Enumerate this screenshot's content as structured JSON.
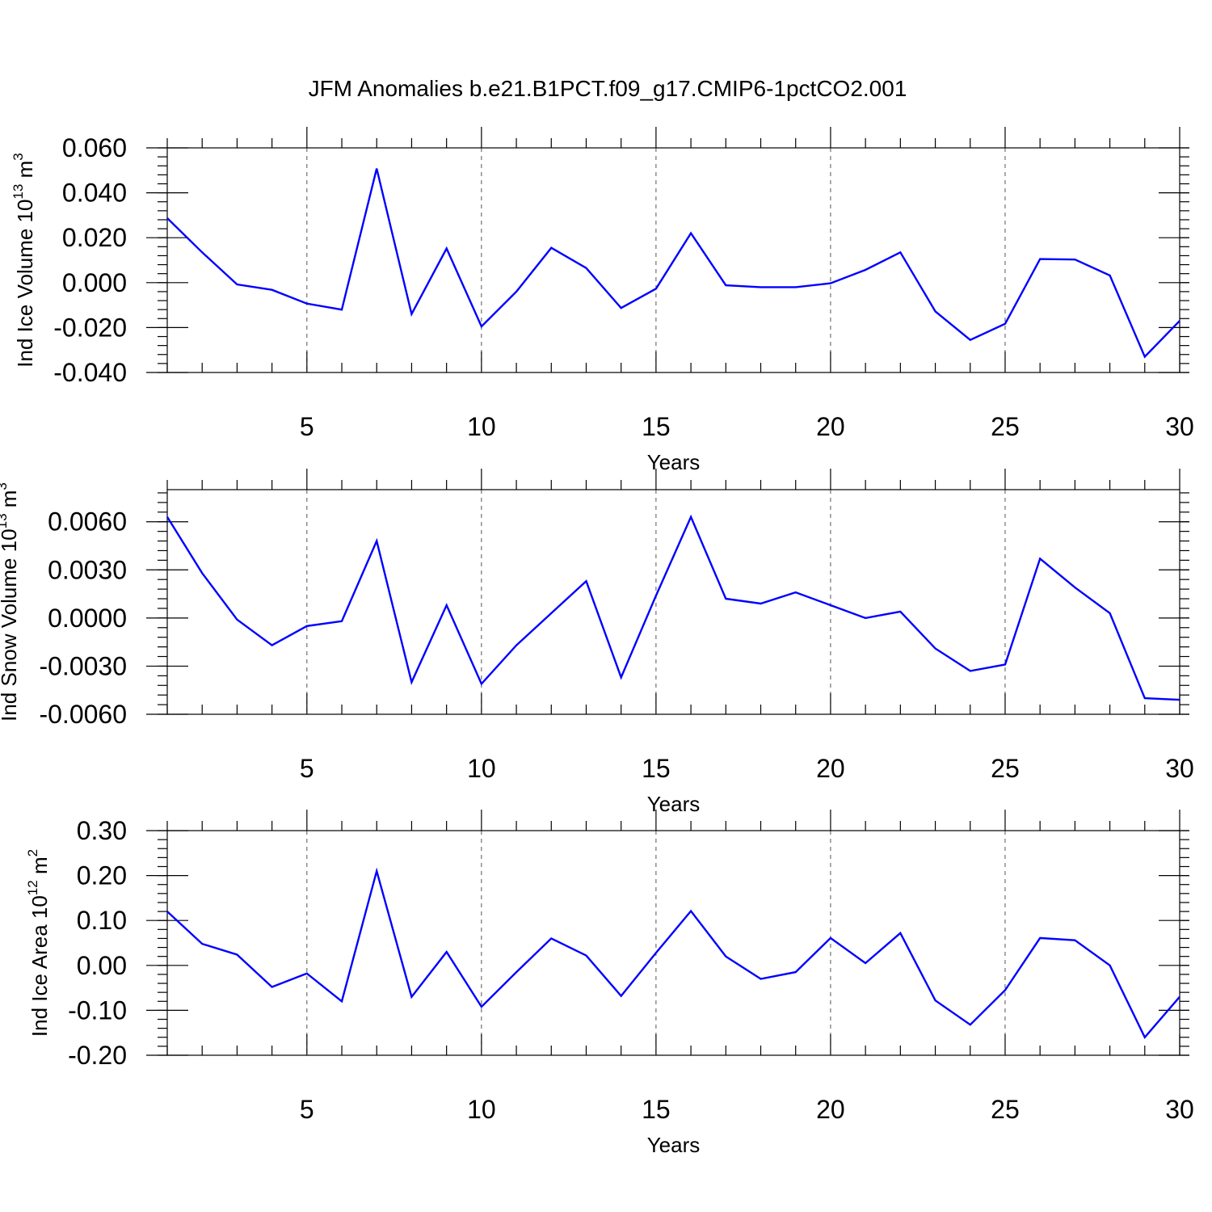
{
  "figure": {
    "title": "JFM Anomalies b.e21.B1PCT.f09_g17.CMIP6-1pctCO2.001"
  },
  "chart_data": [
    {
      "type": "line",
      "xlabel": "Years",
      "ylabel": "Ind Ice Volume 10",
      "ylabel_exponent": "13",
      "ylabel_unit": " m",
      "ylabel_unit_exponent": "3",
      "xlim": [
        1,
        30
      ],
      "ylim": [
        -0.04,
        0.06
      ],
      "x_ticks": [
        5,
        10,
        15,
        20,
        25,
        30
      ],
      "x_tick_labels": [
        "5",
        "10",
        "15",
        "20",
        "25",
        "30"
      ],
      "y_ticks": [
        -0.04,
        -0.02,
        0.0,
        0.02,
        0.04,
        0.06
      ],
      "y_tick_labels": [
        "-0.040",
        "-0.020",
        "0.000",
        "0.020",
        "0.040",
        "0.060"
      ],
      "y_minor_step": 0.004,
      "grid": "vertical dashed at major x ticks",
      "line_color": "#0000ff",
      "x": [
        1,
        2,
        3,
        4,
        5,
        6,
        7,
        8,
        9,
        10,
        11,
        12,
        13,
        14,
        15,
        16,
        17,
        18,
        19,
        20,
        21,
        22,
        23,
        24,
        25,
        26,
        27,
        28,
        29,
        30
      ],
      "values": [
        0.0287,
        0.0135,
        -0.0008,
        -0.0032,
        -0.0093,
        -0.012,
        0.0508,
        -0.014,
        0.0152,
        -0.0195,
        -0.004,
        0.0155,
        0.0065,
        -0.0113,
        -0.0027,
        0.022,
        -0.0012,
        -0.002,
        -0.002,
        -0.0003,
        0.0057,
        0.0135,
        -0.0128,
        -0.0255,
        -0.0183,
        0.0105,
        0.0103,
        0.0032,
        -0.033,
        -0.017
      ]
    },
    {
      "type": "line",
      "xlabel": "Years",
      "ylabel": "Ind Snow Volume 10",
      "ylabel_exponent": "13",
      "ylabel_unit": " m",
      "ylabel_unit_exponent": "3",
      "xlim": [
        1,
        30
      ],
      "ylim": [
        -0.006,
        0.008
      ],
      "x_ticks": [
        5,
        10,
        15,
        20,
        25,
        30
      ],
      "x_tick_labels": [
        "5",
        "10",
        "15",
        "20",
        "25",
        "30"
      ],
      "y_ticks": [
        -0.006,
        -0.003,
        0.0,
        0.003,
        0.006
      ],
      "y_tick_labels": [
        "-0.0060",
        "-0.0030",
        "0.0000",
        "0.0030",
        "0.0060"
      ],
      "y_minor_step": 0.0006,
      "grid": "vertical dashed at major x ticks",
      "line_color": "#0000ff",
      "x": [
        1,
        2,
        3,
        4,
        5,
        6,
        7,
        8,
        9,
        10,
        11,
        12,
        13,
        14,
        15,
        16,
        17,
        18,
        19,
        20,
        21,
        22,
        23,
        24,
        25,
        26,
        27,
        28,
        29,
        30
      ],
      "values": [
        0.0063,
        0.0028,
        -0.0001,
        -0.0017,
        -0.0005,
        -0.0002,
        0.0048,
        -0.004,
        0.0008,
        -0.0041,
        -0.0017,
        0.0003,
        0.0023,
        -0.0037,
        0.0014,
        0.0063,
        0.0012,
        0.0009,
        0.0016,
        0.0008,
        0.0,
        0.0004,
        -0.0019,
        -0.0033,
        -0.0029,
        0.0037,
        0.0019,
        0.0003,
        -0.005,
        -0.0051
      ]
    },
    {
      "type": "line",
      "xlabel": "Years",
      "ylabel": "Ind Ice Area 10",
      "ylabel_exponent": "12",
      "ylabel_unit": " m",
      "ylabel_unit_exponent": "2",
      "xlim": [
        1,
        30
      ],
      "ylim": [
        -0.2,
        0.3
      ],
      "x_ticks": [
        5,
        10,
        15,
        20,
        25,
        30
      ],
      "x_tick_labels": [
        "5",
        "10",
        "15",
        "20",
        "25",
        "30"
      ],
      "y_ticks": [
        -0.2,
        -0.1,
        0.0,
        0.1,
        0.2,
        0.3
      ],
      "y_tick_labels": [
        "-0.20",
        "-0.10",
        "0.00",
        "0.10",
        "0.20",
        "0.30"
      ],
      "y_minor_step": 0.02,
      "grid": "vertical dashed at major x ticks",
      "line_color": "#0000ff",
      "x": [
        1,
        2,
        3,
        4,
        5,
        6,
        7,
        8,
        9,
        10,
        11,
        12,
        13,
        14,
        15,
        16,
        17,
        18,
        19,
        20,
        21,
        22,
        23,
        24,
        25,
        26,
        27,
        28,
        29,
        30
      ],
      "values": [
        0.12,
        0.048,
        0.024,
        -0.048,
        -0.018,
        -0.08,
        0.21,
        -0.07,
        0.03,
        -0.092,
        -0.015,
        0.06,
        0.022,
        -0.068,
        0.028,
        0.121,
        0.02,
        -0.03,
        -0.015,
        0.061,
        0.005,
        0.072,
        -0.078,
        -0.132,
        -0.055,
        0.061,
        0.056,
        0.0,
        -0.16,
        -0.07
      ]
    }
  ]
}
